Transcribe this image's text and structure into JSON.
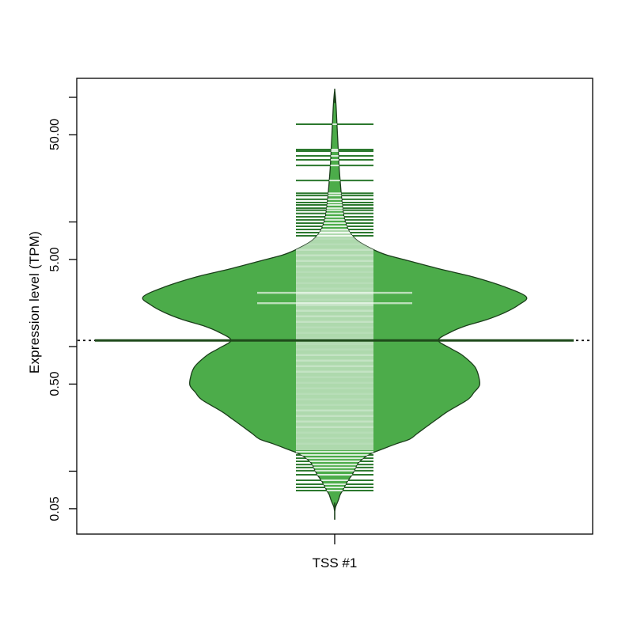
{
  "page": {
    "background": "#ffffff"
  },
  "labels": {
    "y_axis_title": "Expression level (TPM)",
    "x_category": "TSS #1"
  },
  "chart_data": {
    "type": "violin",
    "variant": "beanplot",
    "title": "",
    "xlabel": "",
    "ylabel": "Expression level (TPM)",
    "categories": [
      "TSS #1"
    ],
    "y_scale": "log10",
    "ylim": [
      0.04,
      130
    ],
    "grid": false,
    "legend": false,
    "y_ticks": [
      {
        "value": 100,
        "label": ""
      },
      {
        "value": 50,
        "label": "50.00"
      },
      {
        "value": 10,
        "label": ""
      },
      {
        "value": 5,
        "label": "5.00"
      },
      {
        "value": 1,
        "label": ""
      },
      {
        "value": 0.5,
        "label": "0.50"
      },
      {
        "value": 0.1,
        "label": ""
      },
      {
        "value": 0.05,
        "label": "0.05"
      }
    ],
    "colors": {
      "violin_fill": "#4cac4a",
      "violin_outline": "#1a3e1a",
      "line_outside": "#2c782e",
      "line_inside": "rgba(255,255,255,0.80)",
      "dense_band": "rgba(255,255,255,0.55)",
      "average_line": "#1e4a1a",
      "overall_line": "#111111",
      "axis": "#000000"
    },
    "series": [
      {
        "name": "TSS #1",
        "average_tpm": 1.12,
        "overall_average_tpm": 1.12,
        "density_profile": [
          [
            110.8,
            0.3
          ],
          [
            90.3,
            1.5
          ],
          [
            67.4,
            2.5
          ],
          [
            50.3,
            3.5
          ],
          [
            37.6,
            4.5
          ],
          [
            28.0,
            5.5
          ],
          [
            20.9,
            7
          ],
          [
            16.1,
            8.5
          ],
          [
            13.1,
            10
          ],
          [
            10.84,
            12
          ],
          [
            9.36,
            15
          ],
          [
            8.09,
            20
          ],
          [
            6.99,
            30
          ],
          [
            6.04,
            48
          ],
          [
            5.45,
            65
          ],
          [
            4.85,
            95
          ],
          [
            4.19,
            133
          ],
          [
            3.62,
            175
          ],
          [
            3.04,
            213
          ],
          [
            2.512,
            242
          ],
          [
            2.17,
            233
          ],
          [
            1.874,
            215
          ],
          [
            1.644,
            192
          ],
          [
            1.462,
            165
          ],
          [
            1.301,
            146
          ],
          [
            1.124,
            131
          ],
          [
            0.971,
            146
          ],
          [
            0.864,
            160
          ],
          [
            0.746,
            172
          ],
          [
            0.674,
            178
          ],
          [
            0.574,
            182
          ],
          [
            0.489,
            183
          ],
          [
            0.428,
            176
          ],
          [
            0.375,
            168
          ],
          [
            0.302,
            143
          ],
          [
            0.261,
            129
          ],
          [
            0.225,
            115
          ],
          [
            0.2,
            104
          ],
          [
            0.181,
            95
          ],
          [
            0.166,
            78
          ],
          [
            0.152,
            62
          ],
          [
            0.135,
            42
          ],
          [
            0.117,
            30
          ],
          [
            0.105,
            26
          ],
          [
            0.0936,
            22
          ],
          [
            0.0845,
            17
          ],
          [
            0.0763,
            13
          ],
          [
            0.0699,
            10
          ],
          [
            0.065,
            7
          ],
          [
            0.0595,
            5
          ],
          [
            0.0553,
            3
          ],
          [
            0.0514,
            1
          ],
          [
            0.0485,
            0.3
          ]
        ],
        "data_lines_tpm": [
          60.8,
          38.1,
          37.0,
          33.9,
          31.5,
          28.4,
          21.5,
          17.0,
          16.3,
          15.2,
          14.3,
          13.7,
          12.9,
          12.4,
          11.7,
          11.0,
          10.4,
          9.78,
          9.23,
          8.7,
          8.21,
          7.74,
          0.143,
          0.135,
          0.127,
          0.12,
          0.113,
          0.107,
          0.101,
          0.0936,
          0.0845,
          0.0785,
          0.0741,
          0.0699
        ],
        "duplicated_value_lines_tpm": [
          2.7,
          2.23
        ],
        "dense_band_tpm_range": [
          8.6,
          0.147
        ],
        "tail_tpm": {
          "top": [
            117,
            90
          ],
          "bottom": [
            0.056,
            0.0408
          ]
        }
      }
    ]
  }
}
